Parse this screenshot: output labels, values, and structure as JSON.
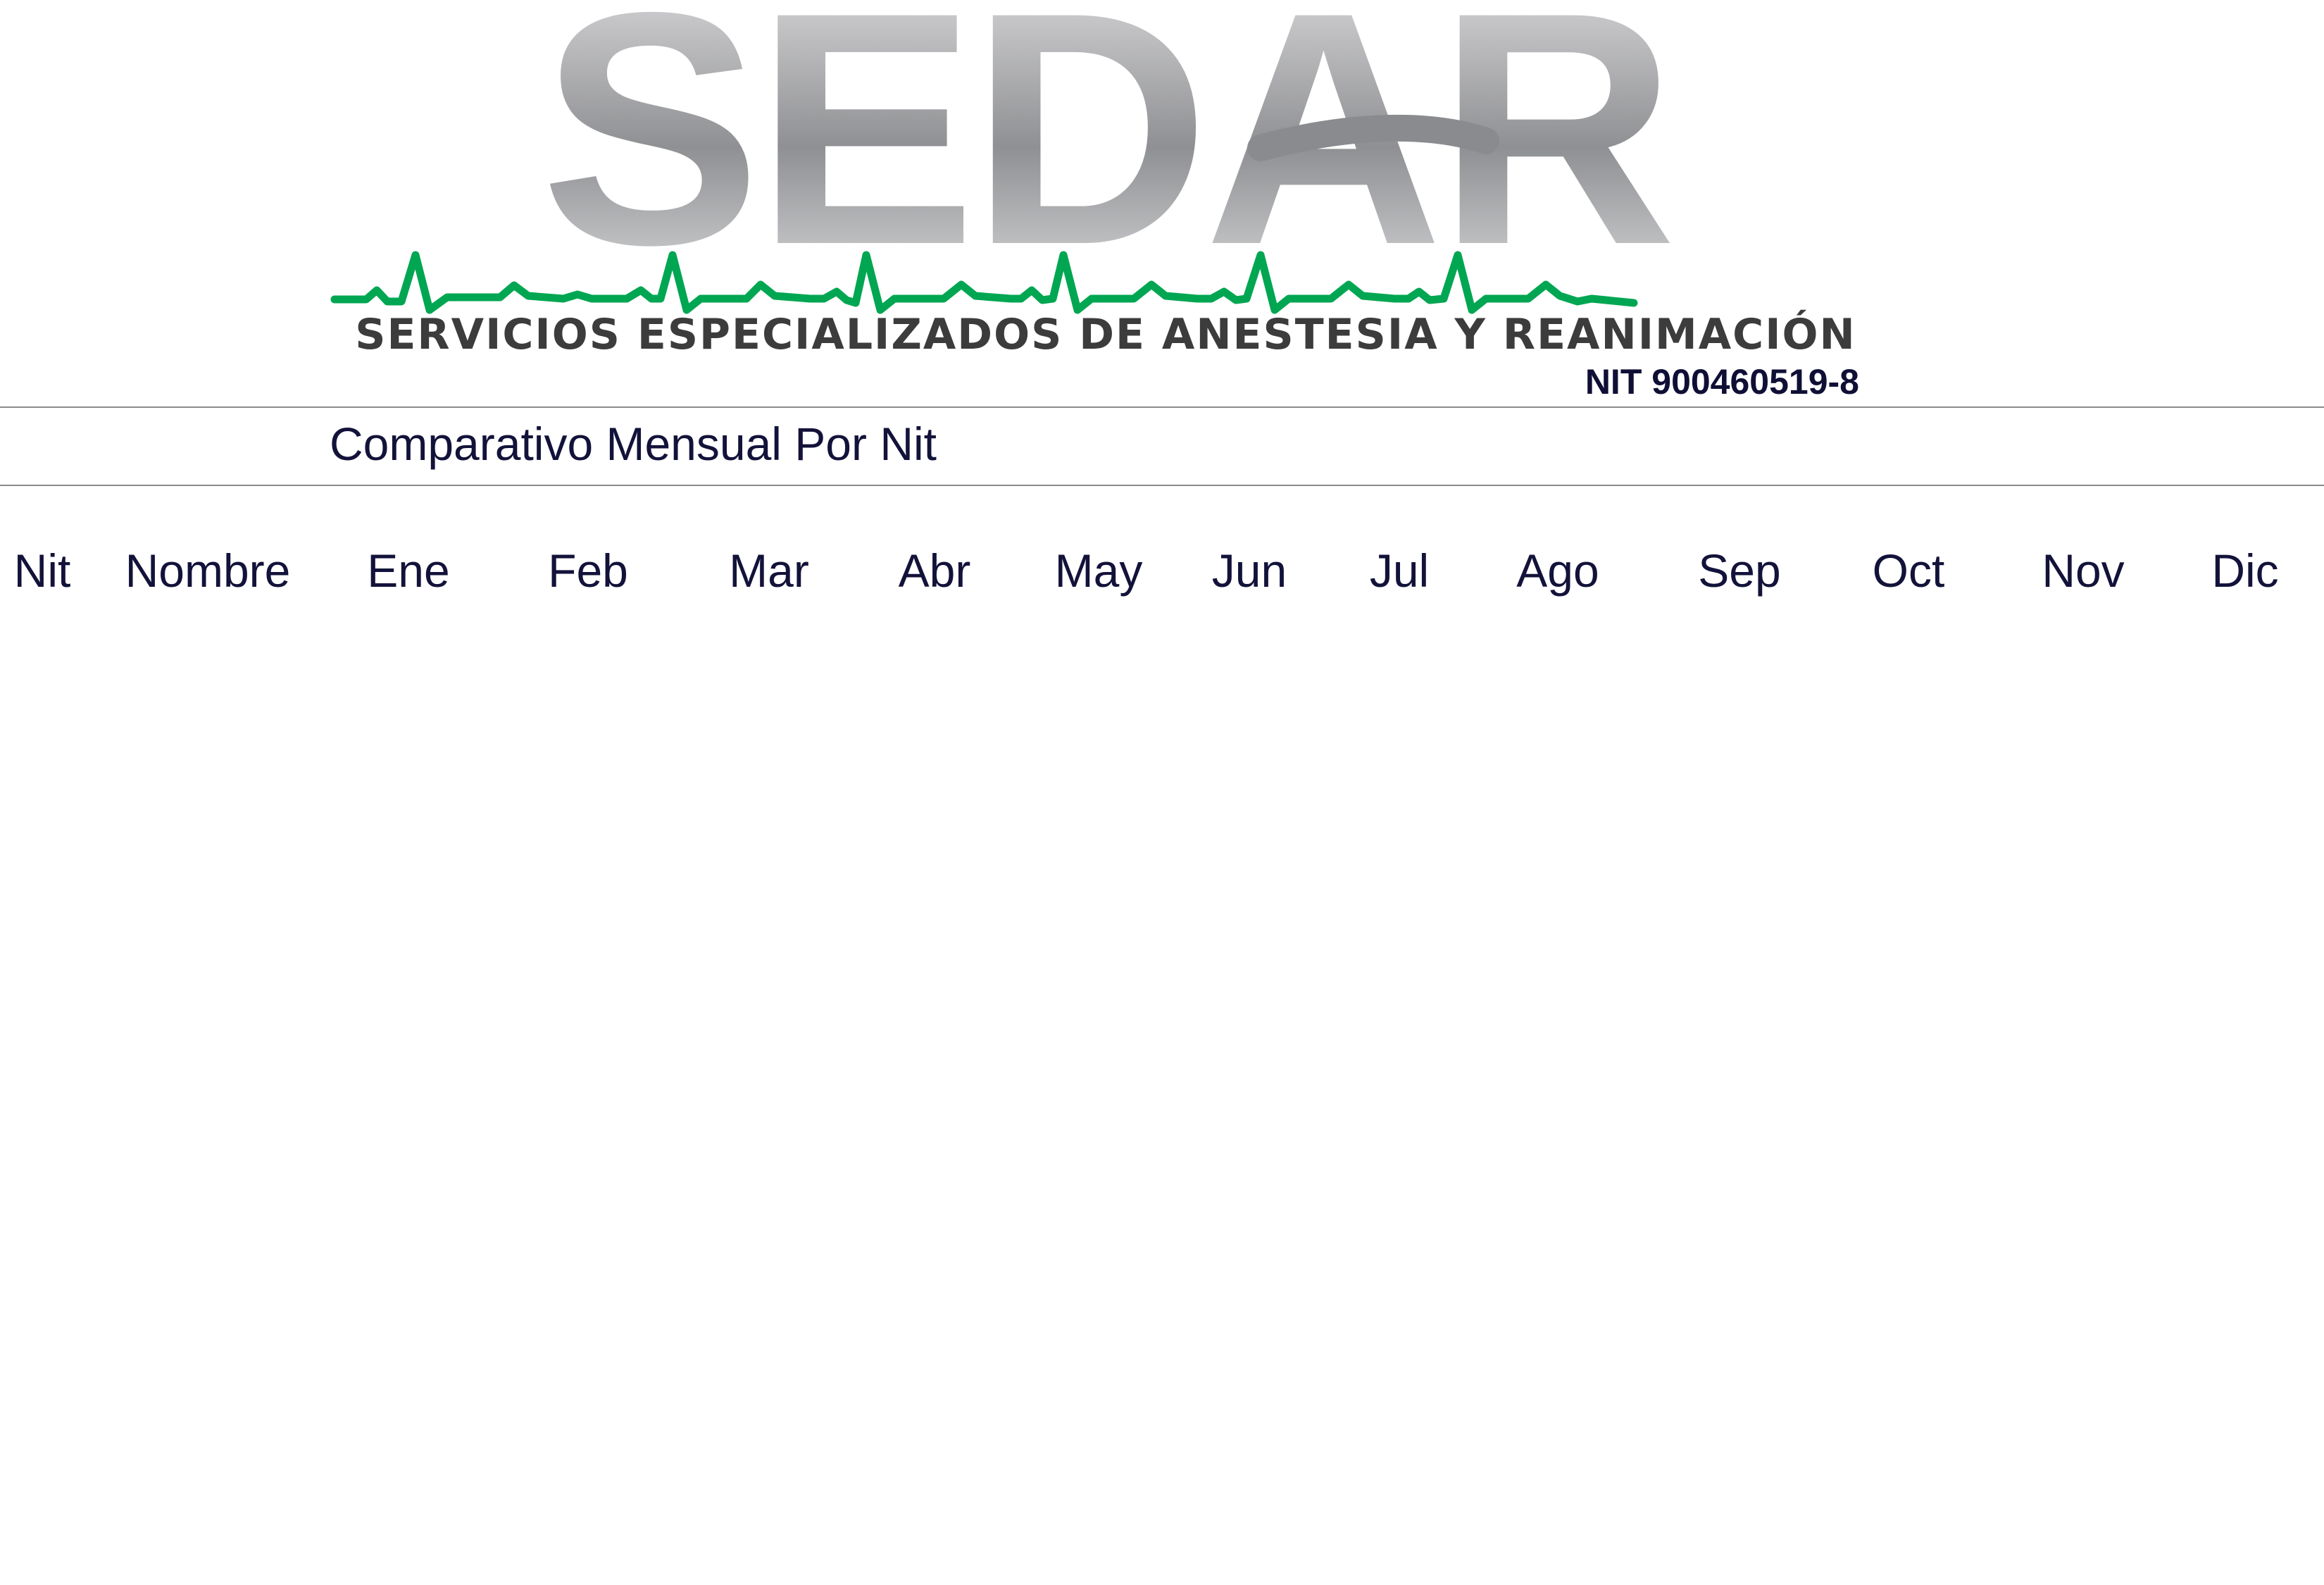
{
  "logo": {
    "wordmark": "SEDAR",
    "tagline": "SERVICIOS ESPECIALIZADOS DE ANESTESIA Y REANIMACIÓN",
    "wordmark_color": "#8f9093",
    "pulse_color": "#00a651",
    "tagline_color": "#3c3c3c"
  },
  "header": {
    "nit_line": "NIT 900460519-8"
  },
  "report": {
    "title": "Comparativo Mensual Por Nit"
  },
  "table": {
    "columns": [
      "Nit",
      "Nombre",
      "Ene",
      "Feb",
      "Mar",
      "Abr",
      "May",
      "Jun",
      "Jul",
      "Ago",
      "Sep",
      "Oct",
      "Nov",
      "Dic"
    ],
    "rows": []
  }
}
